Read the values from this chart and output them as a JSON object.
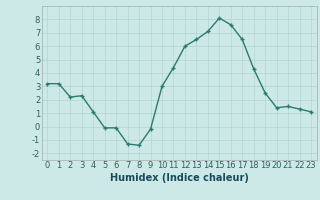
{
  "x": [
    0,
    1,
    2,
    3,
    4,
    5,
    6,
    7,
    8,
    9,
    10,
    11,
    12,
    13,
    14,
    15,
    16,
    17,
    18,
    19,
    20,
    21,
    22,
    23
  ],
  "y": [
    3.2,
    3.2,
    2.2,
    2.3,
    1.1,
    -0.1,
    -0.1,
    -1.3,
    -1.4,
    -0.2,
    3.0,
    4.4,
    6.0,
    6.5,
    7.1,
    8.1,
    7.6,
    6.5,
    4.3,
    2.5,
    1.4,
    1.5,
    1.3,
    1.1
  ],
  "line_color": "#2d7a6e",
  "marker": "+",
  "marker_color": "#2d7a6e",
  "background_color": "#cce9e7",
  "grid_color": "#b0d5d2",
  "xlabel": "Humidex (Indice chaleur)",
  "ylim": [
    -2.5,
    9.0
  ],
  "xlim": [
    -0.5,
    23.5
  ],
  "yticks": [
    -2,
    -1,
    0,
    1,
    2,
    3,
    4,
    5,
    6,
    7,
    8
  ],
  "xticks": [
    0,
    1,
    2,
    3,
    4,
    5,
    6,
    7,
    8,
    9,
    10,
    11,
    12,
    13,
    14,
    15,
    16,
    17,
    18,
    19,
    20,
    21,
    22,
    23
  ],
  "xlabel_fontsize": 7,
  "tick_fontsize": 6,
  "line_width": 1.0,
  "marker_size": 3.5
}
